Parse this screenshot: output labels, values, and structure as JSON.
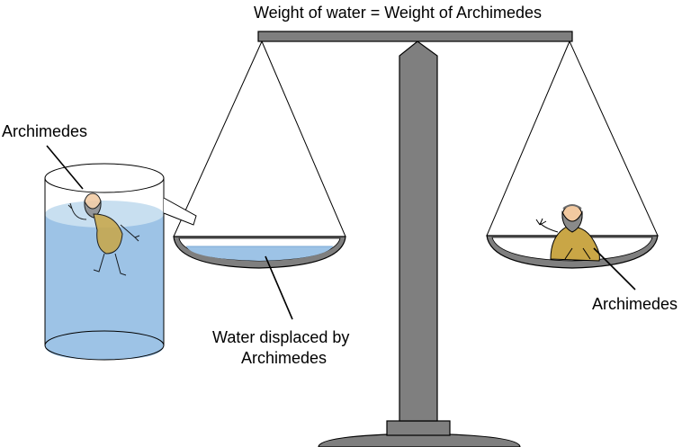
{
  "title": "Weight of water = Weight of Archimedes",
  "labels": {
    "archimedes_in_water": "Archimedes",
    "displaced_water_line1": "Water displaced by",
    "displaced_water_line2": "Archimedes",
    "archimedes_on_pan": "Archimedes"
  },
  "colors": {
    "water": "#9dc3e6",
    "water_surface": "#c8dff0",
    "balance_metal": "#7f7f7f",
    "outline": "#000000",
    "robe": "#c9a646",
    "skin": "#f2c9a0"
  }
}
